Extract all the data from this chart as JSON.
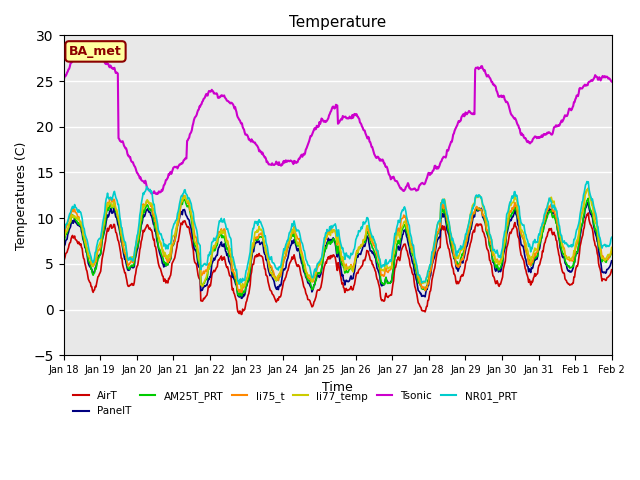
{
  "title": "Temperature",
  "xlabel": "Time",
  "ylabel": "Temperatures (C)",
  "ylim": [
    -5,
    30
  ],
  "annotation_text": "BA_met",
  "annotation_color": "#8B0000",
  "annotation_bg": "#FFFFA0",
  "annotation_border": "#8B0000",
  "background_color": "#E8E8E8",
  "grid_color": "white",
  "series": {
    "AirT": {
      "color": "#CC0000",
      "lw": 1.2
    },
    "PanelT": {
      "color": "#000080",
      "lw": 1.2
    },
    "AM25T_PRT": {
      "color": "#00CC00",
      "lw": 1.2
    },
    "li75_t": {
      "color": "#FF8800",
      "lw": 1.2
    },
    "li77_temp": {
      "color": "#CCCC00",
      "lw": 1.2
    },
    "Tsonic": {
      "color": "#CC00CC",
      "lw": 1.5
    },
    "NR01_PRT": {
      "color": "#00CCCC",
      "lw": 1.2
    }
  },
  "legend_order": [
    "AirT",
    "PanelT",
    "AM25T_PRT",
    "li75_t",
    "li77_temp",
    "Tsonic",
    "NR01_PRT"
  ],
  "x_tick_labels": [
    "Jan 18",
    "Jan 19",
    "Jan 20",
    "Jan 21",
    "Jan 22",
    "Jan 23",
    "Jan 24",
    "Jan 25",
    "Jan 26",
    "Jan 27",
    "Jan 28",
    "Jan 29",
    "Jan 30",
    "Jan 31",
    "Feb 1",
    "Feb 2"
  ],
  "num_points": 16
}
